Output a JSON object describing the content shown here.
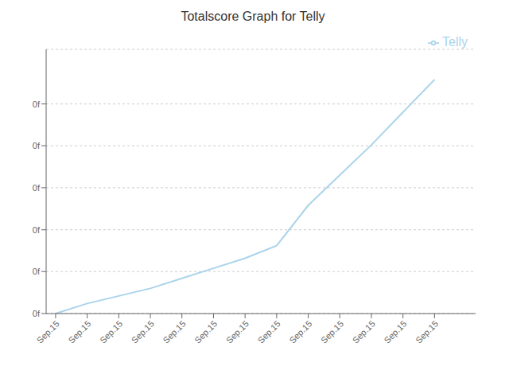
{
  "chart_data": {
    "type": "line",
    "title": "Totalscore Graph for Telly",
    "x": [
      0,
      1,
      2,
      3,
      4,
      5,
      6,
      7,
      8,
      9,
      10,
      11,
      12
    ],
    "series": [
      {
        "name": "Telly",
        "color": "#aad4ea",
        "values": [
          0.0,
          0.04,
          0.07,
          0.1,
          0.14,
          0.18,
          0.22,
          0.27,
          0.43,
          0.55,
          0.67,
          0.8,
          0.93
        ]
      }
    ],
    "xlim": [
      -0.3,
      13.3
    ],
    "xticks": [
      {
        "value": 0,
        "label": "Sep.15"
      },
      {
        "value": 1,
        "label": "Sep.15"
      },
      {
        "value": 2,
        "label": "Sep.15"
      },
      {
        "value": 3,
        "label": "Sep.15"
      },
      {
        "value": 4,
        "label": "Sep.15"
      },
      {
        "value": 5,
        "label": "Sep.15"
      },
      {
        "value": 6,
        "label": "Sep.15"
      },
      {
        "value": 7,
        "label": "Sep.15"
      },
      {
        "value": 8,
        "label": "Sep.15"
      },
      {
        "value": 9,
        "label": "Sep.15"
      },
      {
        "value": 10,
        "label": "Sep.15"
      },
      {
        "value": 11,
        "label": "Sep.15"
      },
      {
        "value": 12,
        "label": "Sep.15"
      }
    ],
    "ylim": [
      0,
      1.05
    ],
    "yticks": [
      {
        "value": 0.0,
        "label": "0f"
      },
      {
        "value": 0.167,
        "label": "0f"
      },
      {
        "value": 0.333,
        "label": "0f"
      },
      {
        "value": 0.5,
        "label": "0f"
      },
      {
        "value": 0.667,
        "label": "0f"
      },
      {
        "value": 0.833,
        "label": "0f"
      }
    ],
    "grid": true,
    "legend": "upper right"
  }
}
